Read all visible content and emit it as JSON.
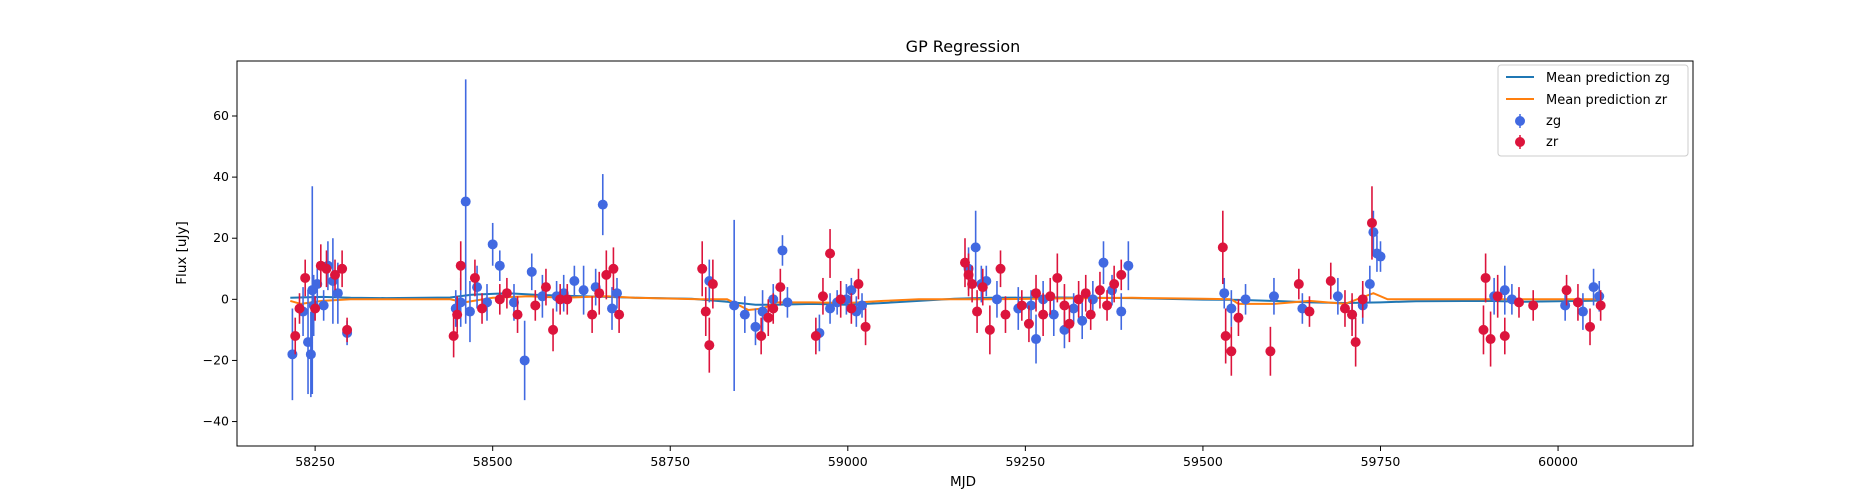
{
  "chart_data": {
    "type": "scatter",
    "title": "GP Regression",
    "xlabel": "MJD",
    "ylabel": "Flux [uJy]",
    "xlim": [
      58140,
      60190
    ],
    "ylim": [
      -48,
      78
    ],
    "xticks": [
      58250,
      58500,
      58750,
      59000,
      59250,
      59500,
      59750,
      60000
    ],
    "yticks": [
      -40,
      -20,
      0,
      20,
      40,
      60
    ],
    "grid": false,
    "legend_position": "top-right",
    "legend": [
      "Mean prediction zg",
      "Mean prediction zr",
      "zg",
      "zr"
    ],
    "colors": {
      "mean_zg": "#1f77b4",
      "mean_zr": "#ff7f0e",
      "zg": "#4169e1",
      "zr": "#dc143c"
    },
    "lines": [
      {
        "name": "Mean prediction zg",
        "color": "#1f77b4",
        "x": [
          58215,
          58260,
          58300,
          58350,
          58440,
          58470,
          58520,
          58560,
          58600,
          58660,
          58700,
          58780,
          58830,
          58870,
          58900,
          58950,
          59000,
          59050,
          59100,
          59150,
          59200,
          59300,
          59400,
          59500,
          59550,
          59600,
          59650,
          59700,
          59750,
          59800,
          59900,
          59950,
          60000,
          60060
        ],
        "y": [
          0.5,
          0.8,
          0.5,
          0.4,
          0.6,
          1.5,
          2.0,
          1.5,
          1.2,
          0.8,
          0.5,
          0.2,
          -0.8,
          -1.8,
          -1.8,
          -1.5,
          -1.8,
          -1.2,
          -0.5,
          0.2,
          0.5,
          0.6,
          0.4,
          -0.1,
          -0.2,
          -0.5,
          -1.0,
          -1.2,
          -1.0,
          -0.6,
          -0.5,
          -0.8,
          -0.6,
          -0.4
        ]
      },
      {
        "name": "Mean prediction zr",
        "color": "#ff7f0e",
        "x": [
          58215,
          58230,
          58260,
          58300,
          58350,
          58440,
          58460,
          58500,
          58550,
          58600,
          58660,
          58700,
          58790,
          58830,
          58860,
          58880,
          58900,
          58950,
          59000,
          59050,
          59100,
          59150,
          59200,
          59300,
          59400,
          59500,
          59540,
          59550,
          59600,
          59650,
          59700,
          59740,
          59760,
          59800,
          59900,
          60000,
          60060
        ],
        "y": [
          -0.5,
          -1.5,
          -0.5,
          0.0,
          0.0,
          0.0,
          -1.0,
          0.5,
          1.0,
          0.5,
          1.0,
          0.5,
          0.0,
          0.0,
          -3.5,
          -3.0,
          -1.0,
          -1.0,
          -1.2,
          -0.5,
          0.0,
          0.0,
          0.0,
          0.3,
          0.5,
          0.2,
          0.0,
          -1.5,
          -1.5,
          -0.5,
          -1.5,
          2.0,
          0.0,
          0.0,
          0.0,
          0.0,
          0.0
        ]
      }
    ],
    "series": [
      {
        "name": "zg",
        "color": "#4169e1",
        "x": [
          58218,
          58233,
          58240,
          58244,
          58246,
          58248,
          58253,
          58262,
          58268,
          58275,
          58282,
          58295,
          58448,
          58455,
          58462,
          58468,
          58478,
          58492,
          58500,
          58510,
          58530,
          58545,
          58555,
          58570,
          58590,
          58600,
          58615,
          58628,
          58645,
          58655,
          58668,
          58675,
          58805,
          58840,
          58855,
          58870,
          58880,
          58895,
          58908,
          58915,
          58960,
          58975,
          58985,
          58998,
          59005,
          59012,
          59020,
          59170,
          59180,
          59188,
          59195,
          59210,
          59240,
          59258,
          59265,
          59275,
          59290,
          59305,
          59318,
          59330,
          59345,
          59360,
          59372,
          59385,
          59395,
          59530,
          59540,
          59560,
          59600,
          59640,
          59690,
          59710,
          59725,
          59735,
          59740,
          59745,
          59750,
          59910,
          59925,
          59935,
          60010,
          60035,
          60050,
          60058
        ],
        "y": [
          -18,
          -4,
          -14,
          -18,
          3,
          -2,
          5,
          -2,
          11,
          6,
          2,
          -11,
          -3,
          -1,
          32,
          -4,
          4,
          -1,
          18,
          11,
          -1,
          -20,
          9,
          1,
          1,
          2,
          6,
          3,
          4,
          31,
          -3,
          2,
          6,
          -2,
          -5,
          -9,
          -4,
          0,
          16,
          -1,
          -11,
          -3,
          -1,
          0,
          3,
          -4,
          -2,
          10,
          17,
          5,
          6,
          0,
          -3,
          -2,
          -13,
          0,
          -5,
          -10,
          -3,
          -7,
          0,
          12,
          3,
          -4,
          11,
          2,
          -3,
          0,
          1,
          -3,
          1,
          -5,
          -2,
          5,
          22,
          15,
          14,
          1,
          3,
          0,
          -2,
          -4,
          4,
          1
        ],
        "err": [
          15,
          8,
          17,
          14,
          34,
          10,
          6,
          5,
          8,
          14,
          10,
          4,
          6,
          8,
          40,
          10,
          7,
          6,
          7,
          5,
          6,
          13,
          6,
          7,
          5,
          6,
          5,
          8,
          6,
          10,
          7,
          5,
          7,
          28,
          6,
          6,
          7,
          5,
          5,
          5,
          6,
          5,
          4,
          5,
          4,
          5,
          4,
          7,
          12,
          6,
          5,
          6,
          7,
          5,
          8,
          6,
          7,
          6,
          5,
          6,
          6,
          7,
          5,
          6,
          8,
          5,
          6,
          5,
          6,
          5,
          6,
          5,
          6,
          6,
          7,
          6,
          5,
          6,
          8,
          5,
          5,
          6,
          6,
          5
        ]
      },
      {
        "name": "zr",
        "color": "#dc143c",
        "x": [
          58222,
          58228,
          58236,
          58250,
          58258,
          58266,
          58278,
          58288,
          58295,
          58445,
          58450,
          58455,
          58475,
          58485,
          58510,
          58520,
          58535,
          58560,
          58575,
          58585,
          58595,
          58605,
          58640,
          58650,
          58660,
          58670,
          58678,
          58795,
          58800,
          58805,
          58810,
          58878,
          58888,
          58895,
          58905,
          58955,
          58965,
          58975,
          58990,
          59005,
          59015,
          59025,
          59165,
          59170,
          59175,
          59182,
          59190,
          59200,
          59215,
          59222,
          59245,
          59255,
          59265,
          59275,
          59285,
          59295,
          59305,
          59312,
          59325,
          59335,
          59342,
          59355,
          59365,
          59375,
          59385,
          59528,
          59532,
          59540,
          59550,
          59595,
          59635,
          59650,
          59680,
          59700,
          59710,
          59715,
          59725,
          59738,
          59895,
          59898,
          59905,
          59915,
          59925,
          59945,
          59965,
          60012,
          60028,
          60045,
          60060
        ],
        "y": [
          -12,
          -3,
          7,
          -3,
          11,
          10,
          8,
          10,
          -10,
          -12,
          -5,
          11,
          7,
          -3,
          0,
          2,
          -5,
          -2,
          4,
          -10,
          0,
          0,
          -5,
          2,
          8,
          10,
          -5,
          10,
          -4,
          -15,
          5,
          -12,
          -6,
          -3,
          4,
          -12,
          1,
          15,
          0,
          -3,
          5,
          -9,
          12,
          8,
          5,
          -4,
          4,
          -10,
          10,
          -5,
          -2,
          -8,
          2,
          -5,
          1,
          7,
          -2,
          -8,
          0,
          2,
          -5,
          3,
          -2,
          5,
          8,
          17,
          -12,
          -17,
          -6,
          -17,
          5,
          -4,
          6,
          -3,
          -5,
          -14,
          0,
          25,
          -10,
          7,
          -13,
          1,
          -12,
          -1,
          -2,
          3,
          -1,
          -9,
          -2
        ],
        "err": [
          6,
          5,
          6,
          4,
          7,
          6,
          5,
          6,
          4,
          7,
          6,
          8,
          6,
          5,
          5,
          5,
          6,
          5,
          6,
          7,
          5,
          5,
          6,
          7,
          8,
          7,
          6,
          9,
          8,
          9,
          8,
          6,
          6,
          5,
          6,
          6,
          6,
          8,
          6,
          5,
          5,
          6,
          8,
          7,
          6,
          7,
          6,
          8,
          6,
          6,
          5,
          6,
          6,
          7,
          6,
          8,
          7,
          6,
          6,
          6,
          5,
          6,
          5,
          6,
          5,
          12,
          9,
          8,
          6,
          8,
          5,
          5,
          6,
          6,
          7,
          8,
          6,
          12,
          8,
          8,
          9,
          7,
          6,
          5,
          5,
          5,
          6,
          6,
          5
        ]
      }
    ]
  }
}
